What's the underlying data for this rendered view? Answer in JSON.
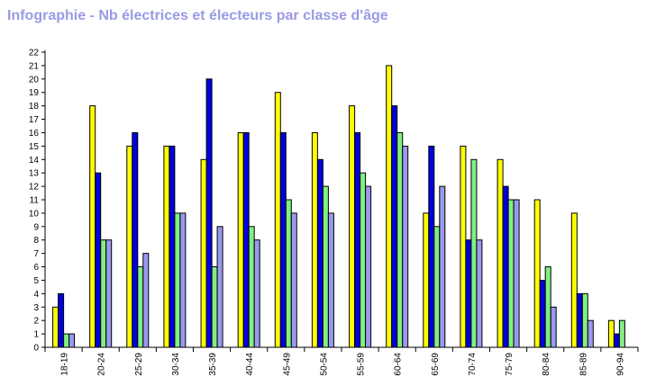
{
  "chart_data": {
    "type": "bar",
    "title": "Infographie - Nb électrices et électeurs par classe d'âge",
    "xlabel": "",
    "ylabel": "",
    "ylim": [
      0,
      22
    ],
    "y_ticks": [
      0,
      1,
      2,
      3,
      4,
      5,
      6,
      7,
      8,
      9,
      10,
      11,
      12,
      13,
      14,
      15,
      16,
      17,
      18,
      19,
      20,
      21,
      22
    ],
    "grid": false,
    "legend": "none",
    "categories": [
      "18-19",
      "20-24",
      "25-29",
      "30-34",
      "35-39",
      "40-44",
      "45-49",
      "50-54",
      "55-59",
      "60-64",
      "65-69",
      "70-74",
      "75-79",
      "80-84",
      "85-89",
      "90-94"
    ],
    "series": [
      {
        "color": "#ffff00",
        "values": [
          3,
          18,
          15,
          15,
          14,
          16,
          19,
          16,
          18,
          21,
          10,
          15,
          14,
          11,
          10,
          2
        ]
      },
      {
        "color": "#0000e0",
        "values": [
          4,
          13,
          16,
          15,
          20,
          16,
          16,
          14,
          16,
          18,
          15,
          8,
          12,
          5,
          4,
          1
        ]
      },
      {
        "color": "#80f080",
        "values": [
          1,
          8,
          6,
          10,
          6,
          9,
          11,
          12,
          13,
          16,
          9,
          14,
          11,
          6,
          4,
          2
        ]
      },
      {
        "color": "#9999ee",
        "values": [
          1,
          8,
          7,
          10,
          9,
          8,
          10,
          10,
          12,
          15,
          12,
          8,
          11,
          3,
          2,
          0
        ]
      }
    ]
  }
}
